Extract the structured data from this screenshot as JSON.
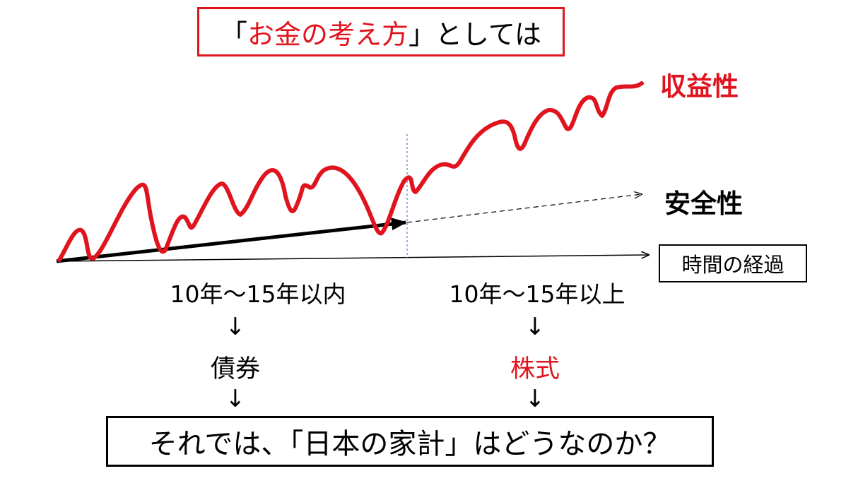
{
  "title": {
    "open_bracket": "「",
    "highlight": "お金の考え方",
    "close_rest": "」としては"
  },
  "labels": {
    "profitability": "収益性",
    "safety": "安全性",
    "time_elapsed": "時間の経過"
  },
  "periods": {
    "short": "10年～15年以内",
    "long": "10年～15年以上"
  },
  "arrow_glyph": "↓",
  "assets": {
    "bonds": "債券",
    "stocks": "株式"
  },
  "question": "それでは、「日本の家計」はどうなのか？",
  "colors": {
    "accent": "#e0141e",
    "divider": "#5b7fc7"
  }
}
